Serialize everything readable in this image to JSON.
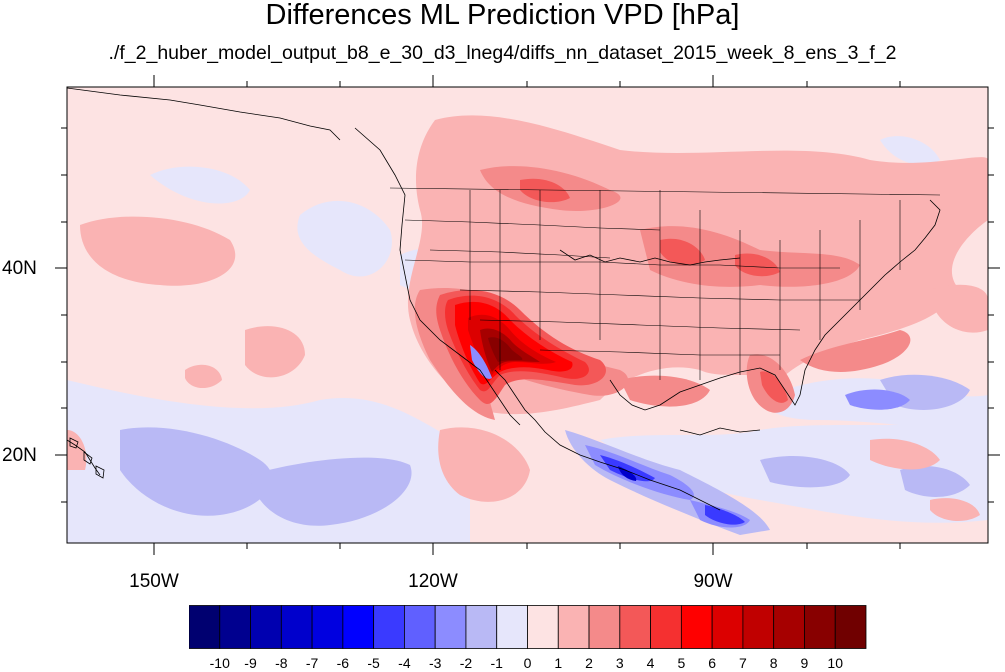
{
  "title": "Differences ML Prediction VPD [hPa]",
  "subtitle": "./f_2_huber_model_output_b8_e_30_d3_lneg4/diffs_nn_dataset_2015_week_8_ens_3_f_2",
  "lon_labels": [
    "150W",
    "120W",
    "90W"
  ],
  "lat_labels": [
    "40N",
    "20N"
  ],
  "colorbar": {
    "labels": [
      "-10",
      "-9",
      "-8",
      "-7",
      "-6",
      "-5",
      "-4",
      "-3",
      "-2",
      "-1",
      "0",
      "1",
      "2",
      "3",
      "4",
      "5",
      "6",
      "7",
      "8",
      "9",
      "10"
    ],
    "colors": [
      "#000070",
      "#00008f",
      "#0000b0",
      "#0000cc",
      "#0000e0",
      "#0000ff",
      "#3a3aff",
      "#6060ff",
      "#8c8cff",
      "#b9b9f5",
      "#e6e6fb",
      "#fde3e3",
      "#fab3b3",
      "#f48a8a",
      "#f35858",
      "#f53030",
      "#ff0000",
      "#dc0000",
      "#c00000",
      "#a60000",
      "#880000",
      "#700000"
    ]
  },
  "map_extent": {
    "lon_min": -160,
    "lon_max": -62,
    "lat_min": 10,
    "lat_max": 59
  }
}
